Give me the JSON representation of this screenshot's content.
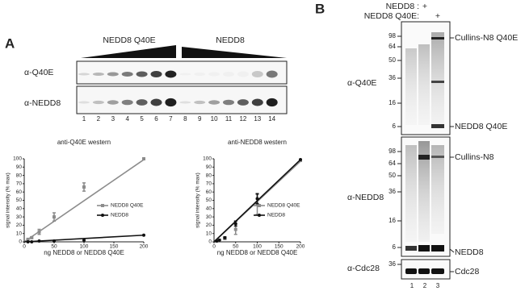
{
  "panel_a": {
    "label": "A",
    "groups": [
      "NEDD8 Q40E",
      "NEDD8"
    ],
    "rows": [
      "α-Q40E",
      "α-NEDD8"
    ],
    "lanes": [
      "1",
      "2",
      "3",
      "4",
      "5",
      "6",
      "7",
      "8",
      "9",
      "10",
      "11",
      "12",
      "13",
      "14"
    ]
  },
  "chart_data": [
    {
      "type": "scatter",
      "title": "anti-Q40E western",
      "xlabel": "ng NEDD8 or NEDD8 Q40E",
      "ylabel": "signal intensity (% max)",
      "xlim": [
        0,
        200
      ],
      "ylim": [
        0,
        100
      ],
      "xticks": [
        0,
        50,
        100,
        150,
        200
      ],
      "yticks": [
        0,
        10,
        20,
        30,
        40,
        50,
        60,
        70,
        80,
        90,
        100
      ],
      "legend": "right",
      "series": [
        {
          "name": "NEDD8 Q40E",
          "color": "#8c8c8c",
          "marker": "square",
          "x": [
            6.25,
            12.5,
            25,
            50,
            100,
            200
          ],
          "values": [
            3,
            5,
            12,
            30,
            66,
            100
          ],
          "errors": [
            1,
            1,
            3,
            5,
            5,
            0
          ],
          "fit": {
            "x": [
              0,
              200
            ],
            "values": [
              0,
              99
            ]
          }
        },
        {
          "name": "NEDD8",
          "color": "#111111",
          "marker": "circle",
          "x": [
            6.25,
            12.5,
            25,
            50,
            100,
            200
          ],
          "values": [
            0,
            0,
            1,
            1,
            2,
            8
          ],
          "errors": [
            0,
            0,
            0,
            0,
            0,
            0
          ],
          "fit": {
            "x": [
              0,
              200
            ],
            "values": [
              0,
              8
            ]
          }
        }
      ]
    },
    {
      "type": "scatter",
      "title": "anti-NEDD8 western",
      "xlabel": "ng NEDD8 or NEDD8 Q40E",
      "ylabel": "signal intensity (% max)",
      "xlim": [
        0,
        200
      ],
      "ylim": [
        0,
        100
      ],
      "xticks": [
        0,
        50,
        100,
        150,
        200
      ],
      "yticks": [
        0,
        10,
        20,
        30,
        40,
        50,
        60,
        70,
        80,
        90,
        100
      ],
      "legend": "right",
      "series": [
        {
          "name": "NEDD8 Q40E",
          "color": "#8c8c8c",
          "marker": "square",
          "x": [
            6.25,
            12.5,
            25,
            50,
            100,
            200
          ],
          "values": [
            1,
            2,
            4,
            15,
            45,
            98
          ],
          "errors": [
            0,
            0,
            1,
            6,
            12,
            0
          ],
          "fit": {
            "x": [
              0,
              200
            ],
            "values": [
              0,
              97
            ]
          }
        },
        {
          "name": "NEDD8",
          "color": "#111111",
          "marker": "circle",
          "x": [
            6.25,
            12.5,
            25,
            50,
            100,
            200
          ],
          "values": [
            1,
            2,
            5,
            22,
            52,
            99
          ],
          "errors": [
            0,
            0,
            1,
            3,
            6,
            0
          ],
          "fit": {
            "x": [
              0,
              200
            ],
            "values": [
              0,
              99
            ]
          }
        }
      ]
    }
  ],
  "panel_b": {
    "label": "B",
    "conditions": [
      "NEDD8 :",
      "NEDD8 Q40E:"
    ],
    "plus": [
      "+",
      "+"
    ],
    "lanes": [
      "1",
      "2",
      "3"
    ],
    "blots": [
      {
        "label": "α-Q40E",
        "markers": [
          "98",
          "64",
          "50",
          "36",
          "16",
          "6"
        ],
        "bands": [
          "Cullins-N8 Q40E",
          "NEDD8 Q40E"
        ]
      },
      {
        "label": "α-NEDD8",
        "markers": [
          "98",
          "64",
          "50",
          "36",
          "16",
          "6"
        ],
        "bands": [
          "Cullins-N8",
          "NEDD8"
        ]
      },
      {
        "label": "α-Cdc28",
        "markers": [
          "36"
        ],
        "bands": [
          "Cdc28"
        ]
      }
    ]
  }
}
